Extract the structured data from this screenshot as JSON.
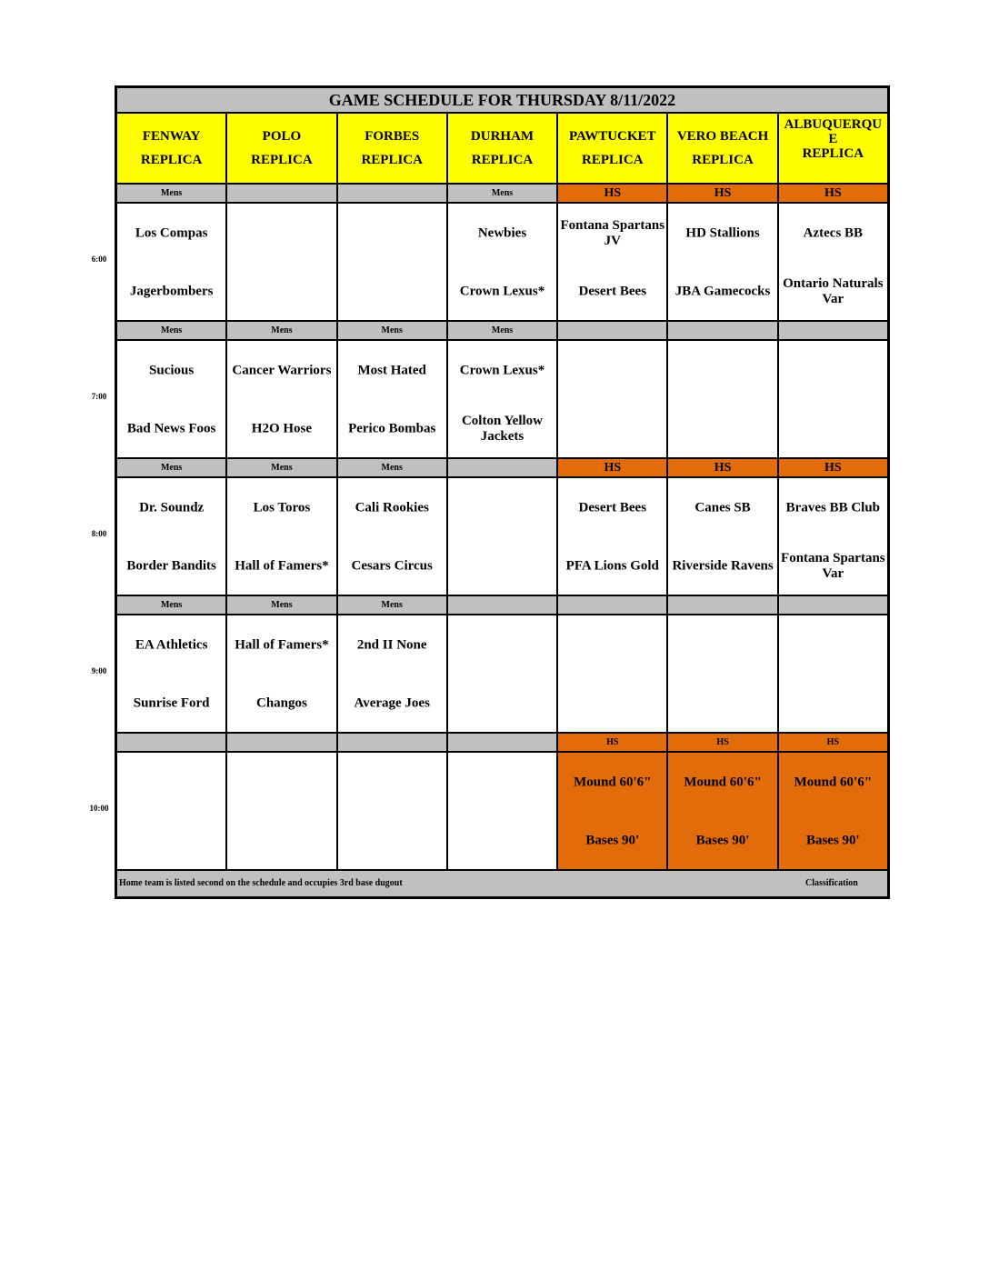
{
  "title": "GAME SCHEDULE FOR THURSDAY 8/11/2022",
  "colors": {
    "gray": "#c0c0c0",
    "yellow": "#ffff00",
    "orange": "#e36c0a"
  },
  "fields": [
    [
      "FENWAY",
      "REPLICA"
    ],
    [
      "POLO",
      "REPLICA"
    ],
    [
      "FORBES",
      "REPLICA"
    ],
    [
      "DURHAM",
      "REPLICA"
    ],
    [
      "PAWTUCKET",
      "REPLICA"
    ],
    [
      "VERO BEACH",
      "REPLICA"
    ],
    [
      "ALBUQUERQU\nE",
      "REPLICA"
    ]
  ],
  "slots": [
    {
      "time": "6:00",
      "labels": [
        "Mens",
        "",
        "",
        "Mens",
        "HS",
        "HS",
        "HS"
      ],
      "label_orange": [
        false,
        false,
        false,
        false,
        true,
        true,
        true
      ],
      "games": [
        [
          "Los Compas",
          "Jagerbombers"
        ],
        null,
        null,
        [
          "Newbies",
          "Crown Lexus*"
        ],
        [
          "Fontana Spartans JV",
          "Desert Bees"
        ],
        [
          "HD Stallions",
          "JBA Gamecocks"
        ],
        [
          "Aztecs BB",
          "Ontario Naturals Var"
        ]
      ],
      "game_orange": [
        false,
        false,
        false,
        false,
        false,
        false,
        false
      ]
    },
    {
      "time": "7:00",
      "labels": [
        "Mens",
        "Mens",
        "Mens",
        "Mens",
        "",
        "",
        ""
      ],
      "label_orange": [
        false,
        false,
        false,
        false,
        false,
        false,
        false
      ],
      "games": [
        [
          "Sucious",
          "Bad News Foos"
        ],
        [
          "Cancer Warriors",
          "H2O Hose"
        ],
        [
          "Most Hated",
          "Perico Bombas"
        ],
        [
          "Crown Lexus*",
          "Colton Yellow Jackets"
        ],
        null,
        null,
        null
      ],
      "game_orange": [
        false,
        false,
        false,
        false,
        false,
        false,
        false
      ]
    },
    {
      "time": "8:00",
      "labels": [
        "Mens",
        "Mens",
        "Mens",
        "",
        "HS",
        "HS",
        "HS"
      ],
      "label_orange": [
        false,
        false,
        false,
        false,
        true,
        true,
        true
      ],
      "games": [
        [
          "Dr. Soundz",
          "Border Bandits"
        ],
        [
          "Los Toros",
          "Hall of Famers*"
        ],
        [
          "Cali Rookies",
          "Cesars Circus"
        ],
        null,
        [
          "Desert Bees",
          "PFA Lions Gold"
        ],
        [
          "Canes SB",
          "Riverside Ravens"
        ],
        [
          "Braves BB Club",
          "Fontana Spartans Var"
        ]
      ],
      "game_orange": [
        false,
        false,
        false,
        false,
        false,
        false,
        false
      ]
    },
    {
      "time": "9:00",
      "labels": [
        "Mens",
        "Mens",
        "Mens",
        "",
        "",
        "",
        ""
      ],
      "label_orange": [
        false,
        false,
        false,
        false,
        false,
        false,
        false
      ],
      "games": [
        [
          "EA Athletics",
          "Sunrise Ford"
        ],
        [
          "Hall of Famers*",
          "Changos"
        ],
        [
          "2nd II None",
          "Average Joes"
        ],
        null,
        null,
        null,
        null
      ],
      "game_orange": [
        false,
        false,
        false,
        false,
        false,
        false,
        false
      ]
    },
    {
      "time": "10:00",
      "labels": [
        "",
        "",
        "",
        "",
        "HS",
        "HS",
        "HS"
      ],
      "label_orange": [
        false,
        false,
        false,
        false,
        true,
        true,
        true
      ],
      "games": [
        null,
        null,
        null,
        null,
        [
          "Mound 60'6\"",
          "Bases 90'"
        ],
        [
          "Mound 60'6\"",
          "Bases 90'"
        ],
        [
          "Mound 60'6\"",
          "Bases 90'"
        ]
      ],
      "game_orange": [
        false,
        false,
        false,
        false,
        true,
        true,
        true
      ]
    }
  ],
  "footer": {
    "note": "Home team is listed second on the schedule and occupies 3rd base dugout",
    "classification": "Classification"
  }
}
